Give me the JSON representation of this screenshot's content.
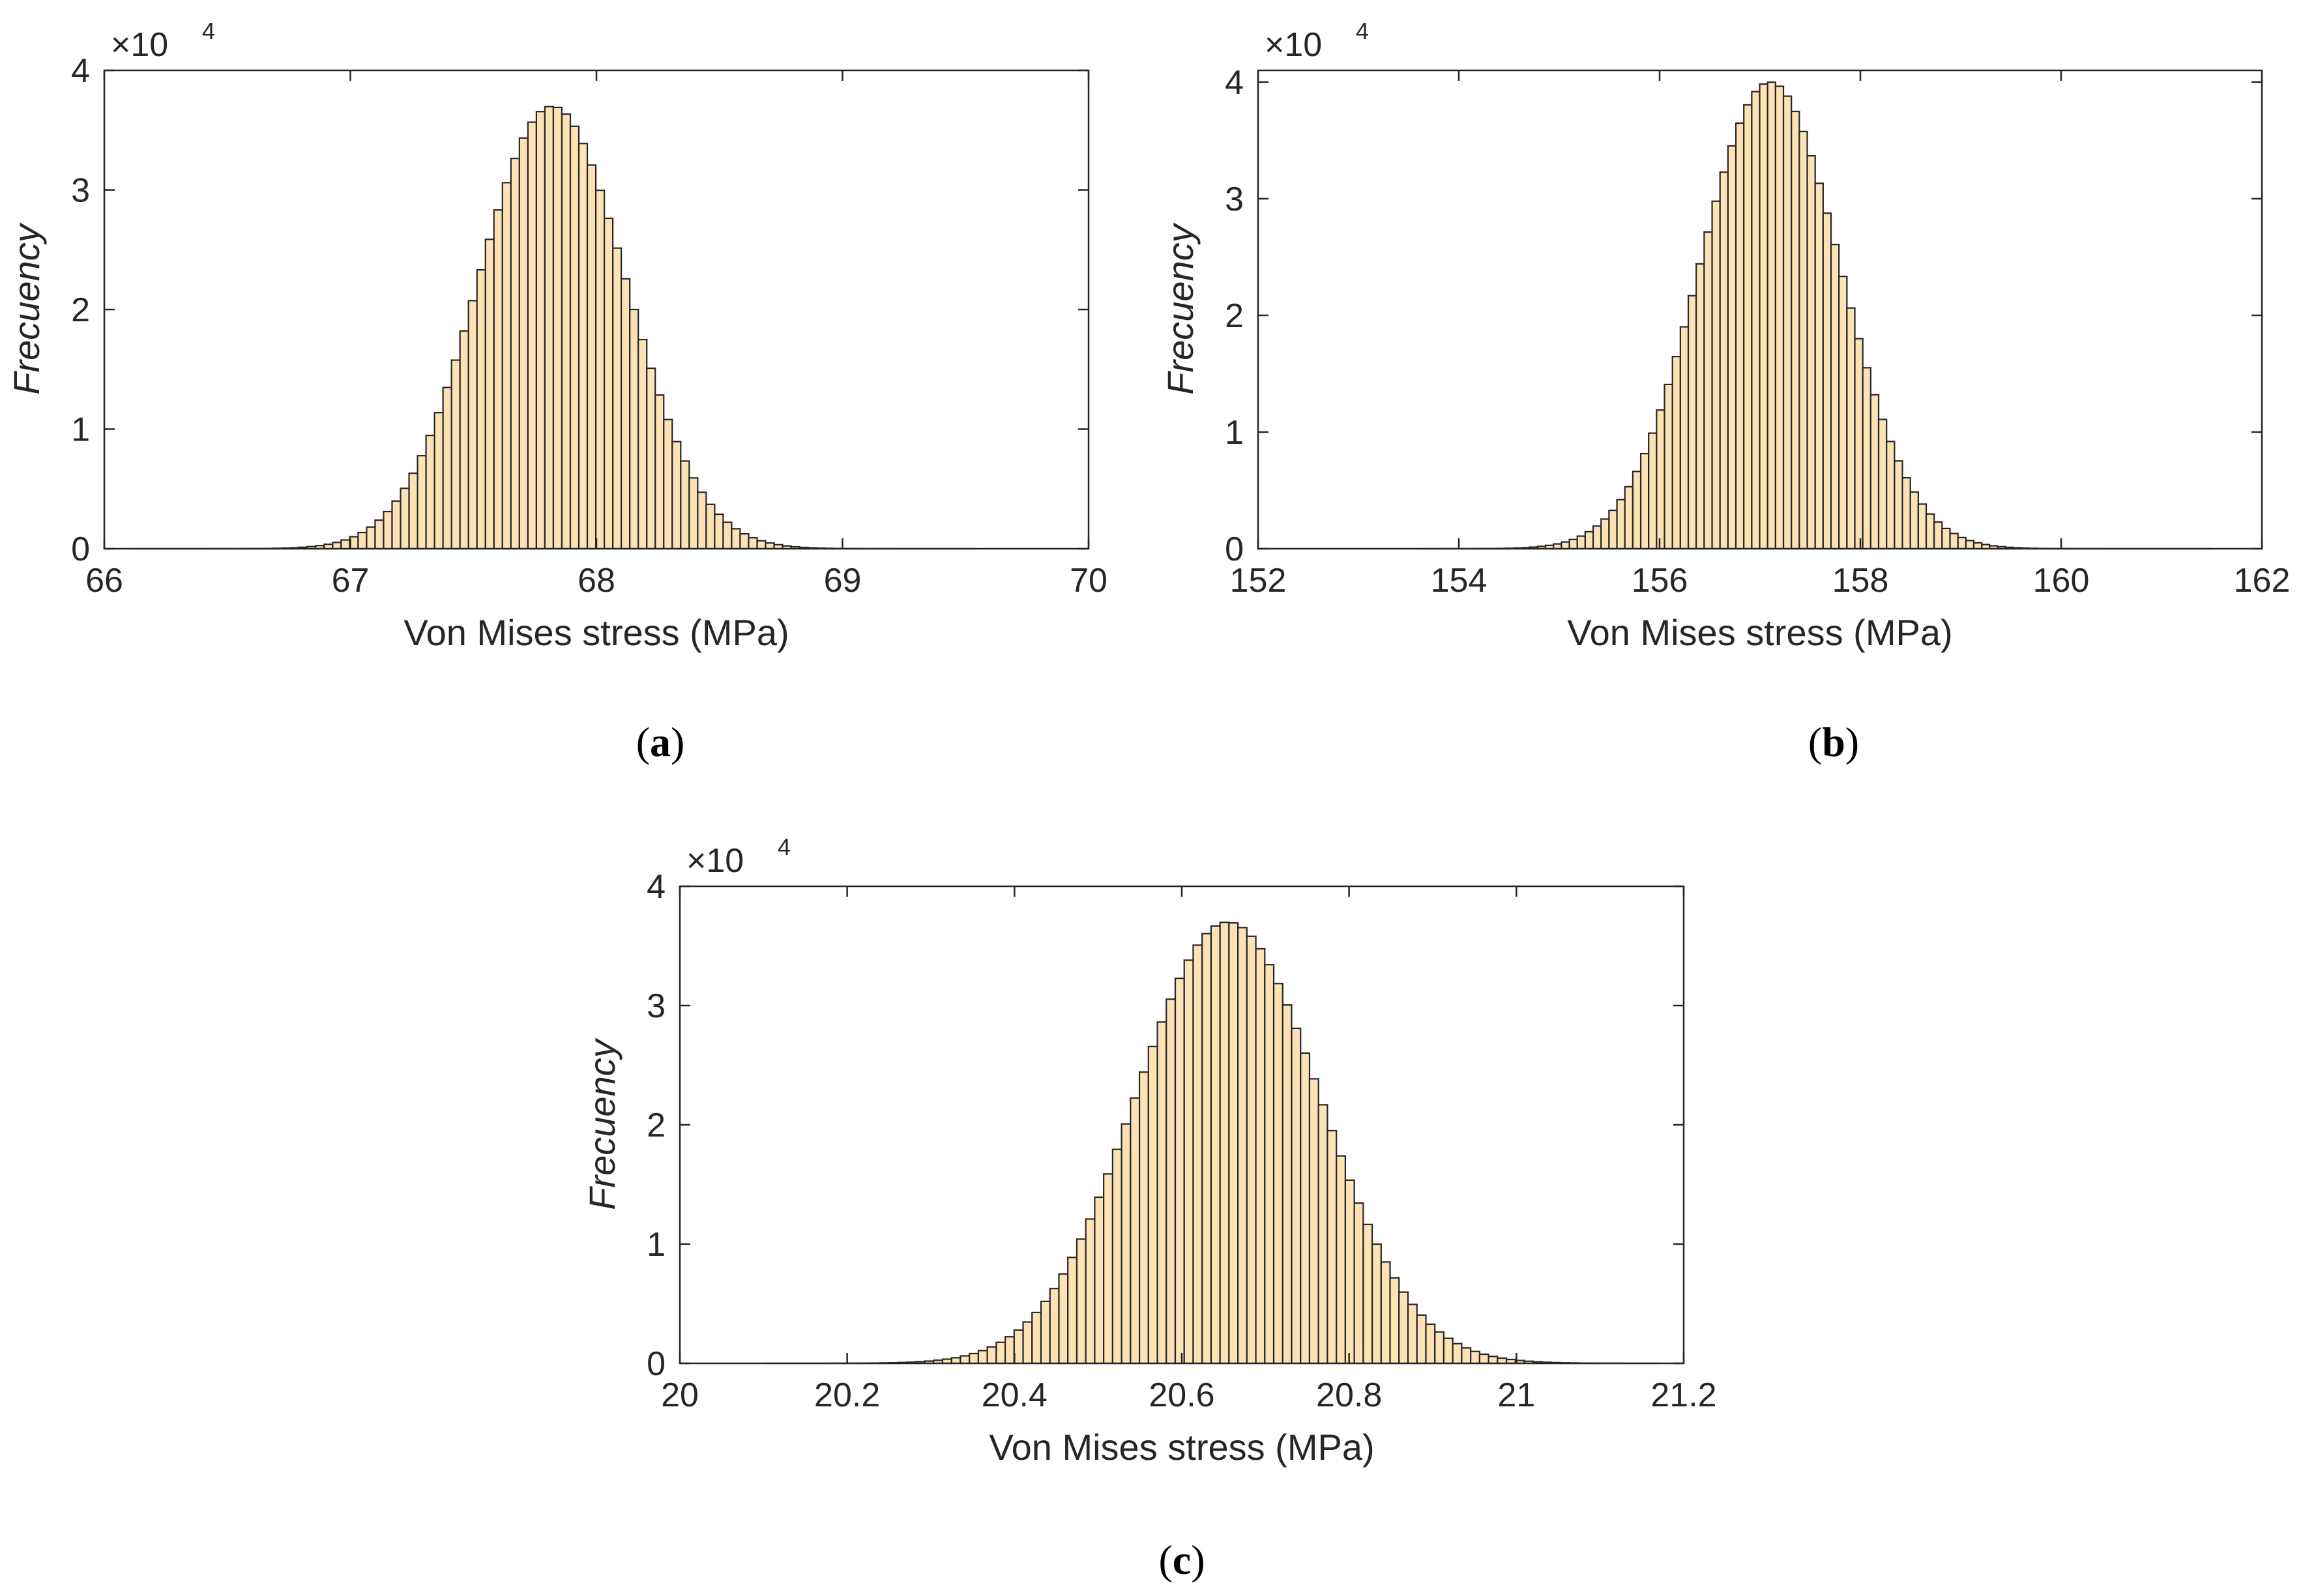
{
  "colors": {
    "bar_fill": "#fde2b6",
    "bar_edge": "#262626",
    "axis": "#262626",
    "text": "#262626"
  },
  "chart_data": [
    {
      "id": "a",
      "type": "bar",
      "panel_label": "a",
      "xlabel": "Von Mises stress (MPa)",
      "ylabel": "Frecuency",
      "y_exponent_base": "×10",
      "y_exponent_power": "4",
      "xlim": [
        66,
        70
      ],
      "ylim": [
        0,
        40000
      ],
      "xticks": [
        66,
        67,
        68,
        69,
        70
      ],
      "xtick_labels": [
        "66",
        "67",
        "68",
        "69",
        "70"
      ],
      "yticks": [
        0,
        10000,
        20000,
        30000,
        40000
      ],
      "ytick_labels": [
        "0",
        "1",
        "2",
        "3",
        "4"
      ],
      "mean": 67.82,
      "std": 0.3,
      "peak": 37000,
      "range": [
        66.1,
        69.55
      ],
      "bins": 100
    },
    {
      "id": "b",
      "type": "bar",
      "panel_label": "b",
      "xlabel": "Von Mises stress (MPa)",
      "ylabel": "Frecuency",
      "y_exponent_base": "×10",
      "y_exponent_power": "4",
      "xlim": [
        152,
        162
      ],
      "ylim": [
        0,
        41000
      ],
      "xticks": [
        152,
        154,
        156,
        158,
        160,
        162
      ],
      "xtick_labels": [
        "152",
        "154",
        "156",
        "158",
        "160",
        "162"
      ],
      "yticks": [
        0,
        10000,
        20000,
        30000,
        40000
      ],
      "ytick_labels": [
        "0",
        "1",
        "2",
        "3",
        "4"
      ],
      "mean": 157.1,
      "std": 0.7,
      "peak": 40000,
      "range": [
        153.6,
        161.5
      ],
      "bins": 100
    },
    {
      "id": "c",
      "type": "bar",
      "panel_label": "c",
      "xlabel": "Von Mises stress (MPa)",
      "ylabel": "Frecuency",
      "y_exponent_base": "×10",
      "y_exponent_power": "4",
      "xlim": [
        20,
        21.2
      ],
      "ylim": [
        0,
        40000
      ],
      "xticks": [
        20,
        20.2,
        20.4,
        20.6,
        20.8,
        21,
        21.2
      ],
      "xtick_labels": [
        "20",
        "20.2",
        "20.4",
        "20.6",
        "20.8",
        "21",
        "21.2"
      ],
      "yticks": [
        0,
        10000,
        20000,
        30000,
        40000
      ],
      "ytick_labels": [
        "0",
        "1",
        "2",
        "3",
        "4"
      ],
      "mean": 20.655,
      "std": 0.11,
      "peak": 37000,
      "range": [
        20.1,
        21.17
      ],
      "bins": 100
    }
  ]
}
